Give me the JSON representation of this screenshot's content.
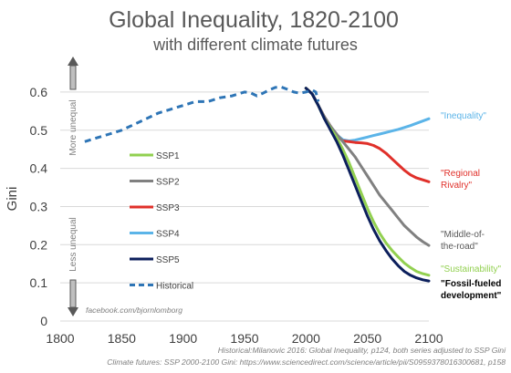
{
  "chart_data": {
    "type": "line",
    "title": "Global Inequality, 1820-2100",
    "subtitle": "with different climate futures",
    "ylabel": "Gini",
    "xlim": [
      1800,
      2100
    ],
    "ylim": [
      0,
      0.65
    ],
    "x_ticks": [
      "1800",
      "1850",
      "1900",
      "1950",
      "2000",
      "2050",
      "2100"
    ],
    "y_ticks": [
      "0",
      "0.1",
      "0.2",
      "0.3",
      "0.4",
      "0.5",
      "0.6"
    ],
    "grid": "horizontal",
    "legend_position": "left",
    "series": [
      {
        "name": "SSP1",
        "color": "#92d050",
        "style": "solid",
        "points": [
          [
            2000,
            0.61
          ],
          [
            2005,
            0.595
          ],
          [
            2010,
            0.565
          ],
          [
            2015,
            0.53
          ],
          [
            2020,
            0.505
          ],
          [
            2025,
            0.48
          ],
          [
            2030,
            0.45
          ],
          [
            2035,
            0.415
          ],
          [
            2040,
            0.375
          ],
          [
            2045,
            0.335
          ],
          [
            2050,
            0.295
          ],
          [
            2055,
            0.26
          ],
          [
            2060,
            0.23
          ],
          [
            2065,
            0.205
          ],
          [
            2070,
            0.185
          ],
          [
            2075,
            0.168
          ],
          [
            2080,
            0.152
          ],
          [
            2085,
            0.14
          ],
          [
            2090,
            0.13
          ],
          [
            2095,
            0.124
          ],
          [
            2100,
            0.12
          ]
        ]
      },
      {
        "name": "SSP2",
        "color": "#808080",
        "style": "solid",
        "points": [
          [
            2000,
            0.61
          ],
          [
            2005,
            0.595
          ],
          [
            2010,
            0.565
          ],
          [
            2015,
            0.535
          ],
          [
            2020,
            0.51
          ],
          [
            2025,
            0.49
          ],
          [
            2030,
            0.47
          ],
          [
            2035,
            0.45
          ],
          [
            2040,
            0.43
          ],
          [
            2045,
            0.405
          ],
          [
            2050,
            0.38
          ],
          [
            2055,
            0.355
          ],
          [
            2060,
            0.33
          ],
          [
            2065,
            0.31
          ],
          [
            2070,
            0.29
          ],
          [
            2075,
            0.27
          ],
          [
            2080,
            0.25
          ],
          [
            2085,
            0.235
          ],
          [
            2090,
            0.22
          ],
          [
            2095,
            0.208
          ],
          [
            2100,
            0.198
          ]
        ]
      },
      {
        "name": "SSP3",
        "color": "#e0302a",
        "style": "solid",
        "points": [
          [
            2000,
            0.61
          ],
          [
            2005,
            0.595
          ],
          [
            2010,
            0.565
          ],
          [
            2015,
            0.535
          ],
          [
            2020,
            0.51
          ],
          [
            2025,
            0.485
          ],
          [
            2030,
            0.472
          ],
          [
            2035,
            0.47
          ],
          [
            2040,
            0.468
          ],
          [
            2045,
            0.467
          ],
          [
            2050,
            0.465
          ],
          [
            2055,
            0.46
          ],
          [
            2060,
            0.452
          ],
          [
            2065,
            0.44
          ],
          [
            2070,
            0.425
          ],
          [
            2075,
            0.41
          ],
          [
            2080,
            0.395
          ],
          [
            2085,
            0.383
          ],
          [
            2090,
            0.375
          ],
          [
            2095,
            0.37
          ],
          [
            2100,
            0.365
          ]
        ]
      },
      {
        "name": "SSP4",
        "color": "#5bb4e8",
        "style": "solid",
        "points": [
          [
            2000,
            0.61
          ],
          [
            2005,
            0.595
          ],
          [
            2010,
            0.565
          ],
          [
            2015,
            0.535
          ],
          [
            2020,
            0.51
          ],
          [
            2025,
            0.488
          ],
          [
            2030,
            0.475
          ],
          [
            2035,
            0.472
          ],
          [
            2040,
            0.474
          ],
          [
            2045,
            0.478
          ],
          [
            2050,
            0.482
          ],
          [
            2055,
            0.486
          ],
          [
            2060,
            0.49
          ],
          [
            2065,
            0.494
          ],
          [
            2070,
            0.498
          ],
          [
            2075,
            0.502
          ],
          [
            2080,
            0.507
          ],
          [
            2085,
            0.512
          ],
          [
            2090,
            0.518
          ],
          [
            2095,
            0.524
          ],
          [
            2100,
            0.53
          ]
        ]
      },
      {
        "name": "SSP5",
        "color": "#0c1f5c",
        "style": "solid",
        "points": [
          [
            2000,
            0.61
          ],
          [
            2005,
            0.595
          ],
          [
            2010,
            0.565
          ],
          [
            2015,
            0.53
          ],
          [
            2020,
            0.5
          ],
          [
            2025,
            0.47
          ],
          [
            2030,
            0.435
          ],
          [
            2035,
            0.395
          ],
          [
            2040,
            0.355
          ],
          [
            2045,
            0.315
          ],
          [
            2050,
            0.275
          ],
          [
            2055,
            0.24
          ],
          [
            2060,
            0.21
          ],
          [
            2065,
            0.185
          ],
          [
            2070,
            0.163
          ],
          [
            2075,
            0.145
          ],
          [
            2080,
            0.13
          ],
          [
            2085,
            0.12
          ],
          [
            2090,
            0.113
          ],
          [
            2095,
            0.108
          ],
          [
            2100,
            0.105
          ]
        ]
      },
      {
        "name": "Historical",
        "color": "#2e75b6",
        "style": "dashed",
        "points": [
          [
            1820,
            0.47
          ],
          [
            1830,
            0.48
          ],
          [
            1840,
            0.49
          ],
          [
            1850,
            0.5
          ],
          [
            1860,
            0.515
          ],
          [
            1870,
            0.53
          ],
          [
            1880,
            0.545
          ],
          [
            1890,
            0.555
          ],
          [
            1900,
            0.565
          ],
          [
            1910,
            0.575
          ],
          [
            1920,
            0.575
          ],
          [
            1930,
            0.585
          ],
          [
            1940,
            0.59
          ],
          [
            1950,
            0.6
          ],
          [
            1955,
            0.598
          ],
          [
            1960,
            0.59
          ],
          [
            1965,
            0.597
          ],
          [
            1970,
            0.605
          ],
          [
            1975,
            0.612
          ],
          [
            1980,
            0.613
          ],
          [
            1985,
            0.607
          ],
          [
            1990,
            0.6
          ],
          [
            1995,
            0.597
          ],
          [
            2000,
            0.6
          ],
          [
            2005,
            0.605
          ],
          [
            2008,
            0.6
          ],
          [
            2010,
            0.575
          ]
        ]
      }
    ],
    "annotations": [
      {
        "lines": [
          "\"Inequality\""
        ],
        "color": "#5bb4e8",
        "weight": "normal"
      },
      {
        "lines": [
          "\"Regional",
          "Rivalry\""
        ],
        "color": "#e0302a",
        "weight": "normal"
      },
      {
        "lines": [
          "\"Middle-of-",
          "the-road\""
        ],
        "color": "#595959",
        "weight": "normal"
      },
      {
        "lines": [
          "\"Sustainability\""
        ],
        "color": "#92d050",
        "weight": "normal"
      },
      {
        "lines": [
          "\"Fossil-fueled",
          "development\""
        ],
        "color": "#000000",
        "weight": "bold"
      }
    ],
    "side_labels": {
      "top": "More unequal",
      "bottom": "Less unequal"
    },
    "credit": "facebook.com/bjornlomborg",
    "sources": [
      "Historical:Milanovic 2016: Global Inequality, p124, both series adjusted to SSP Gini",
      "Climate futures: SSP 2000-2100 Gini: https://www.sciencedirect.com/science/article/pii/S0959378016300681, p158"
    ]
  }
}
